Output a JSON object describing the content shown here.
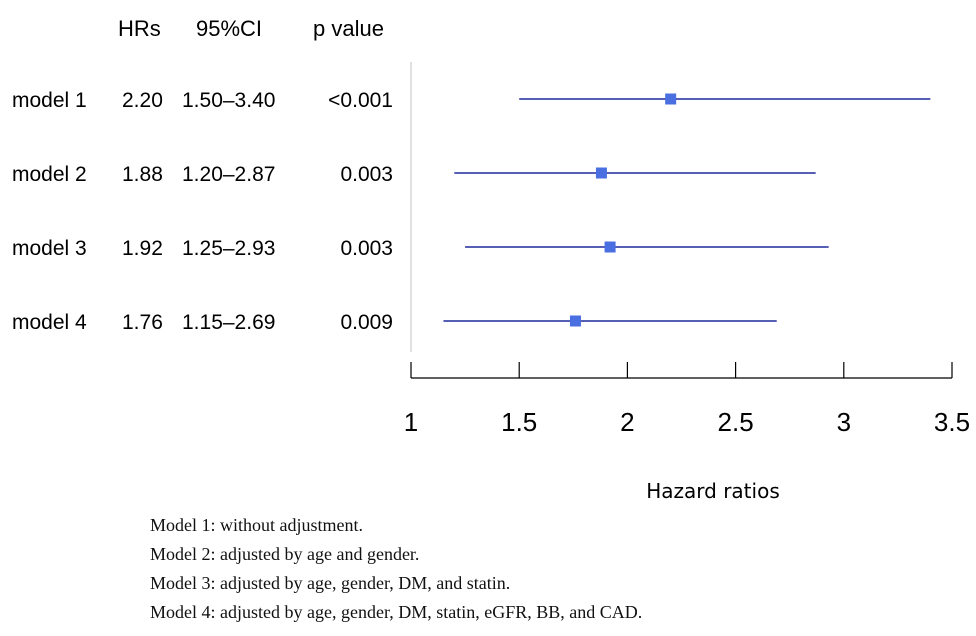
{
  "table": {
    "headers": [
      "HRs",
      "95%CI",
      "p value"
    ],
    "rows": [
      {
        "model": "model 1",
        "hr": "2.20",
        "ci": "1.50–3.40",
        "p": "<0.001"
      },
      {
        "model": "model 2",
        "hr": "1.88",
        "ci": "1.20–2.87",
        "p": "0.003"
      },
      {
        "model": "model 3",
        "hr": "1.92",
        "ci": "1.25–2.93",
        "p": "0.003"
      },
      {
        "model": "model 4",
        "hr": "1.76",
        "ci": "1.15–2.69",
        "p": "0.009"
      }
    ]
  },
  "chart_data": {
    "type": "scatter",
    "title": "",
    "xlabel": "Hazard ratios",
    "ylabel": "",
    "xlim": [
      1,
      3.5
    ],
    "x_ticks": [
      "1",
      "1.5",
      "2",
      "2.5",
      "3",
      "3.5"
    ],
    "categories": [
      "model 1",
      "model 2",
      "model 3",
      "model 4"
    ],
    "points": [
      {
        "label": "model 1",
        "hr": 2.2,
        "ci_low": 1.5,
        "ci_high": 3.4
      },
      {
        "label": "model 2",
        "hr": 1.88,
        "ci_low": 1.2,
        "ci_high": 2.87
      },
      {
        "label": "model 3",
        "hr": 1.92,
        "ci_low": 1.25,
        "ci_high": 2.93
      },
      {
        "label": "model 4",
        "hr": 1.76,
        "ci_low": 1.15,
        "ci_high": 2.69
      }
    ],
    "reference_line": 1,
    "grid": false,
    "colors": {
      "interval": "#1e2a9c",
      "point": "#4a6fe0",
      "reference": "#cccccc"
    }
  },
  "notes": [
    "Model 1: without adjustment.",
    "Model 2: adjusted by age and gender.",
    "Model 3: adjusted by age, gender, DM, and statin.",
    "Model 4: adjusted by age, gender, DM, statin, eGFR, BB, and CAD."
  ]
}
